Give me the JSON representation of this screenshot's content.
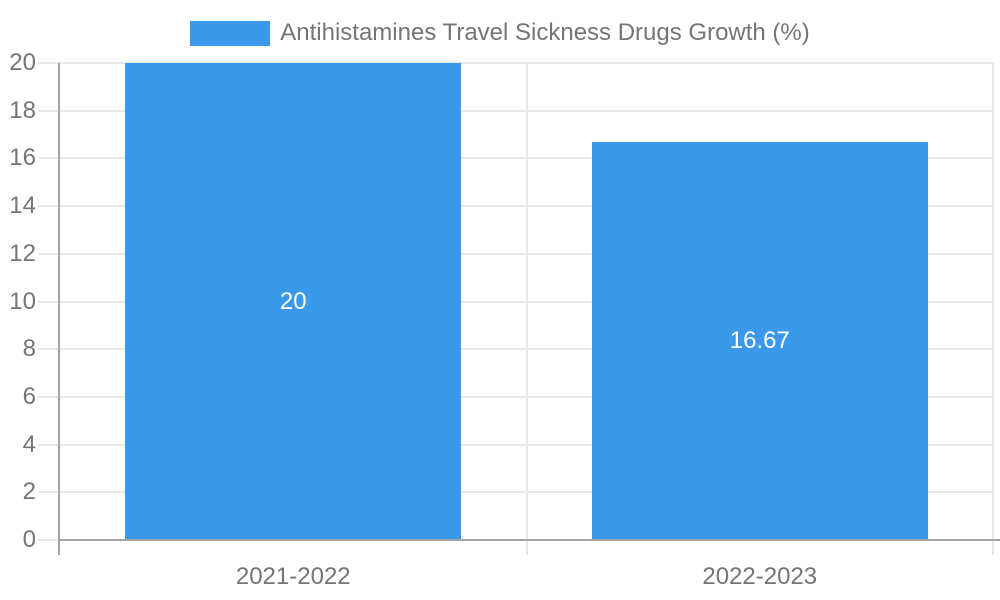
{
  "chart_data": {
    "type": "bar",
    "title": "Antihistamines Travel Sickness Drugs Growth (%)",
    "categories": [
      "2021-2022",
      "2022-2023"
    ],
    "values": [
      20,
      16.67
    ],
    "bar_labels": [
      "20",
      "16.67"
    ],
    "xlabel": "",
    "ylabel": "",
    "ylim": [
      0,
      20
    ],
    "ytick_step": 2,
    "grid": true,
    "legend_position": "top",
    "bar_width_fraction": 0.72,
    "colors": {
      "bar": "#3B99EC",
      "grid": "#E8E8E8",
      "axis": "#A3A3A3",
      "tick_text": "#757575",
      "bar_label_text": "#FFFFFF"
    }
  }
}
